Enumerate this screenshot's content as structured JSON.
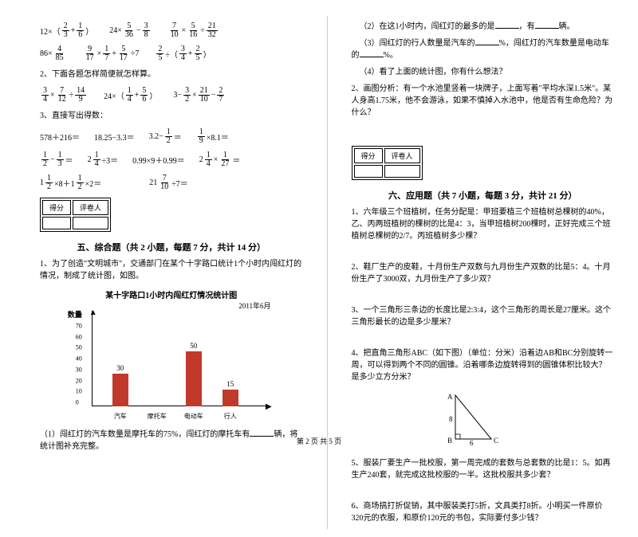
{
  "left": {
    "eq1": {
      "a": "12×（",
      "f1n": "2",
      "f1d": "3",
      "mid": " + ",
      "f2n": "1",
      "f2d": "6",
      "end": "）"
    },
    "eq2": {
      "a": "24× ",
      "f1n": "5",
      "f1d": "36",
      "mid": " − ",
      "f2n": "3",
      "f2d": "8"
    },
    "eq3": {
      "f1n": "7",
      "f1d": "10",
      "a": " × ",
      "f2n": "5",
      "f2d": "16",
      "mid": " ÷ ",
      "f3n": "21",
      "f3d": "32"
    },
    "eq4": {
      "a": "86× ",
      "f1n": "4",
      "f1d": "85"
    },
    "eq5": {
      "f1n": "9",
      "f1d": "17",
      "a": " × ",
      "f2n": "1",
      "f2d": "7",
      "mid": " + ",
      "f3n": "5",
      "f3d": "17",
      "end": " ÷7"
    },
    "eq6": {
      "f1n": "2",
      "f1d": "5",
      "a": " ÷（",
      "f2n": "3",
      "f2d": "4",
      "mid": " + ",
      "f3n": "2",
      "f3d": "5",
      "end": "）"
    },
    "q2": "2、下面各题怎样简便就怎样算。",
    "eq7": {
      "f1n": "3",
      "f1d": "4",
      "a": " × ",
      "f2n": "7",
      "f2d": "12",
      "mid": " ÷ ",
      "f3n": "14",
      "f3d": "9"
    },
    "eq8": {
      "a": "24×（",
      "f1n": "1",
      "f1d": "4",
      "mid": " + ",
      "f2n": "5",
      "f2d": "6",
      "end": "）"
    },
    "eq9": {
      "a": "3− ",
      "f1n": "3",
      "f1d": "2",
      "mid": " × ",
      "f2n": "21",
      "f2d": "10",
      "m2": " − ",
      "f3n": "2",
      "f3d": "7"
    },
    "q3": "3、直接写出得数：",
    "mental": [
      [
        "578＋216＝",
        "18.25−3.3＝",
        "3.2−½＝",
        "⅑×8.1＝"
      ],
      [
        "½−⅓＝",
        "2¼÷3＝",
        "0.99×9＋0.99＝",
        "2¼×1/27＝"
      ],
      [
        "1½×8＋1½×2＝",
        "",
        "21 7/10 ÷7＝",
        ""
      ]
    ],
    "m_rows": {
      "r1c1": "578＋216＝",
      "r1c2": "18.25−3.3＝",
      "r1c3a": "3.2−",
      "r1c3fn": "1",
      "r1c3fd": "2",
      "r1c3b": "＝",
      "r1c4fn": "1",
      "r1c4fd": "9",
      "r1c4b": "×8.1＝",
      "r2c1an": "1",
      "r2c1ad": "2",
      "r2c1m": "−",
      "r2c1bn": "1",
      "r2c1bd": "3",
      "r2c1e": "＝",
      "r2c2a": "2",
      "r2c2fn": "1",
      "r2c2fd": "4",
      "r2c2b": "÷3＝",
      "r2c3": "0.99×9＋0.99＝",
      "r2c4a": "2",
      "r2c4fn": "1",
      "r2c4fd": "4",
      "r2c4m": "×",
      "r2c4gn": "1",
      "r2c4gd": "27",
      "r2c4e": "＝",
      "r3c1a": "1",
      "r3c1fn": "1",
      "r3c1fd": "2",
      "r3c1m": "×8＋1",
      "r3c1gn": "1",
      "r3c1gd": "2",
      "r3c1e": "×2＝",
      "r3c3a": "21",
      "r3c3fn": "7",
      "r3c3fd": "10",
      "r3c3e": "÷7＝"
    },
    "score": {
      "label1": "得分",
      "label2": "评卷人"
    },
    "section5": "五、综合题（共 2 小题，每题 7 分，共计 14 分）",
    "q5_1": "1、为了创造\"文明城市\"，交通部门在某个十字路口统计1个小时内闯红灯的情况，制成了统计图，如图。",
    "chart_title": "某十字路口1小时内闯红灯情况统计图",
    "chart_date": "2011年6月",
    "chart_ylabel": "数量",
    "chart": {
      "categories": [
        "汽车",
        "摩托车",
        "电动车",
        "行人"
      ],
      "values": [
        30,
        null,
        50,
        15
      ],
      "ylim_max": 80,
      "ytick_step": 10,
      "bar_color": "#c0392b"
    },
    "q5_1_1": "（1）闯红灯的汽车数量是摩托车的75%，闯红灯的摩托车有",
    "q5_1_1b": "辆，将统计图补充完整。"
  },
  "right": {
    "q5_1_2a": "（2）在这1小时内，闯红灯的最多的是",
    "q5_1_2b": "，有",
    "q5_1_2c": "辆。",
    "q5_1_3a": "（3）闯红灯的行人数量是汽车的",
    "q5_1_3b": "%，闯红灯的汽车数量是电动车的",
    "q5_1_3c": "%。",
    "q5_1_4": "（4）看了上面的统计图，你有什么想法？",
    "q5_2": "2、画图分析：有一个水池里竖着一块牌子，上面写着\"平均水深1.5米\"。某人身高1.75米，他不会游泳，如果不慎掉入水池中，他是否有生命危险？为什么？",
    "score": {
      "label1": "得分",
      "label2": "评卷人"
    },
    "section6": "六、应用题（共 7 小题，每题 3 分，共计 21 分）",
    "q6_1": "1、六年级三个班植树，任务分配是：甲班要植三个班植树总棵树的40%，乙、丙两班植树的棵树的比是4：3，当甲班植树200棵时，正好完成三个班植树总棵树的2/7。丙班植树多少棵？",
    "q6_2": "2、鞋厂生产的皮鞋，十月份生产双数与九月份生产双数的比是5：4。十月份生产了3000双，九月份生产了多少双？",
    "q6_3": "3、一个三角形三条边的长度比是2:3:4，这个三角形的周长是27厘米。这个三角形最长的边是多少厘米？",
    "q6_4": "4、把直角三角形ABC（如下图）（单位：分米）沿着边AB和BC分别旋转一周，可以得到两个不同的圆锥。沿着哪条边旋转得到的圆锥体积比较大？是多少立方分米？",
    "tri": {
      "A": "A",
      "B": "B",
      "C": "C",
      "h": "8",
      "w": "6"
    },
    "q6_5": "5、服装厂要生产一批校服，第一周完成的套数与总套数的比是1：5。如再生产240套，就完成这批校服的一半。这批校服共多少套？",
    "q6_6": "6、商场搞打折促销，其中服装类打5折，文具类打8折。小明买一件原价320元的衣服，和原价120元的书包，实际要付多少钱？"
  },
  "footer": "第 2 页 共 5 页"
}
